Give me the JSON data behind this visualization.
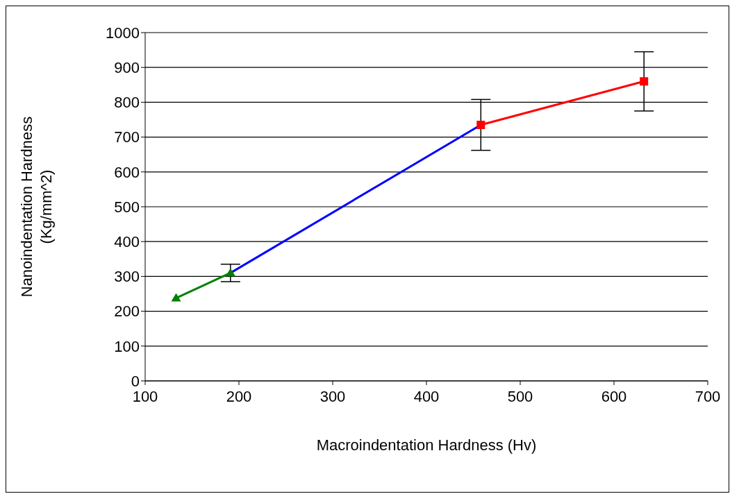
{
  "chart_data": {
    "type": "line",
    "xlabel": "Macroindentation Hardness (Hv)",
    "ylabel": "Nanoindentation Hardness\n(Kg/mm^2)",
    "series": [
      {
        "color": "#008000",
        "x": [
          133,
          191
        ],
        "values": [
          238,
          310
        ],
        "errors": [
          null,
          25
        ],
        "marker": "triangle"
      },
      {
        "color": "#0000ff",
        "x": [
          191,
          458
        ],
        "values": [
          310,
          735
        ],
        "marker": "none"
      },
      {
        "color": "#ff0000",
        "x": [
          458,
          632
        ],
        "values": [
          735,
          860
        ],
        "errors": [
          73,
          85
        ],
        "marker": "square"
      }
    ],
    "xlim": [
      100,
      700
    ],
    "xticks": [
      100,
      200,
      300,
      400,
      500,
      600,
      700
    ],
    "ylim": [
      0,
      1000
    ],
    "yticks": [
      0,
      100,
      200,
      300,
      400,
      500,
      600,
      700,
      800,
      900,
      1000
    ],
    "grid": "y",
    "legend": false
  }
}
